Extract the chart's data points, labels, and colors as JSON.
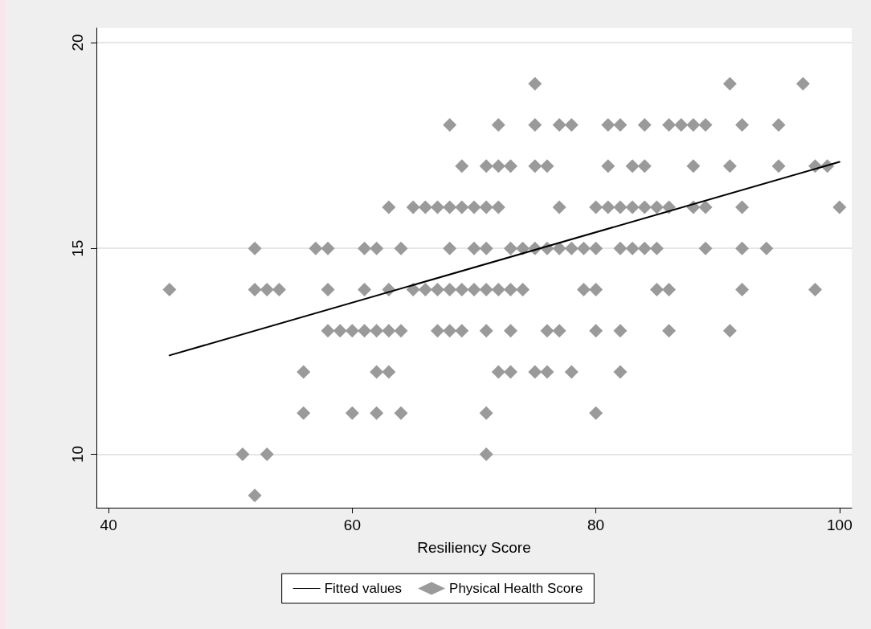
{
  "chart_data": {
    "type": "scatter",
    "xlabel": "Resiliency Score",
    "xlim": [
      39,
      101
    ],
    "xticks": [
      40,
      60,
      80,
      100
    ],
    "ylim": [
      8.7,
      20.35
    ],
    "yticks": [
      10,
      15,
      20
    ],
    "grid": "y",
    "legend": "bottom",
    "marker": "diamond",
    "series": [
      {
        "name": "Fitted values",
        "type": "line",
        "color": "#000000",
        "marker": "none",
        "line_style": "solid",
        "x": [
          45,
          100
        ],
        "values": [
          12.4,
          17.1
        ]
      },
      {
        "name": "Physical Health Score",
        "color": "#9a9a9a",
        "x": [
          75,
          91,
          97,
          68,
          72,
          75,
          77,
          78,
          81,
          82,
          84,
          86,
          87,
          88,
          89,
          92,
          95,
          69,
          71,
          72,
          73,
          75,
          76,
          81,
          83,
          84,
          88,
          91,
          95,
          98,
          99,
          63,
          65,
          66,
          67,
          68,
          69,
          70,
          71,
          72,
          77,
          80,
          81,
          82,
          83,
          84,
          85,
          86,
          88,
          89,
          92,
          100,
          52,
          57,
          58,
          61,
          62,
          64,
          68,
          70,
          71,
          73,
          74,
          75,
          76,
          77,
          78,
          79,
          80,
          82,
          83,
          84,
          85,
          89,
          92,
          94,
          45,
          52,
          53,
          54,
          58,
          61,
          63,
          65,
          66,
          67,
          68,
          69,
          70,
          71,
          72,
          73,
          74,
          79,
          80,
          85,
          86,
          92,
          98,
          58,
          59,
          60,
          61,
          62,
          63,
          64,
          67,
          68,
          69,
          71,
          73,
          76,
          77,
          80,
          82,
          86,
          91,
          56,
          62,
          63,
          72,
          73,
          75,
          76,
          78,
          82,
          56,
          60,
          62,
          64,
          71,
          80,
          51,
          53,
          71,
          52
        ],
        "values": [
          19,
          19,
          19,
          18,
          18,
          18,
          18,
          18,
          18,
          18,
          18,
          18,
          18,
          18,
          18,
          18,
          18,
          17,
          17,
          17,
          17,
          17,
          17,
          17,
          17,
          17,
          17,
          17,
          17,
          17,
          17,
          16,
          16,
          16,
          16,
          16,
          16,
          16,
          16,
          16,
          16,
          16,
          16,
          16,
          16,
          16,
          16,
          16,
          16,
          16,
          16,
          16,
          15,
          15,
          15,
          15,
          15,
          15,
          15,
          15,
          15,
          15,
          15,
          15,
          15,
          15,
          15,
          15,
          15,
          15,
          15,
          15,
          15,
          15,
          15,
          15,
          14,
          14,
          14,
          14,
          14,
          14,
          14,
          14,
          14,
          14,
          14,
          14,
          14,
          14,
          14,
          14,
          14,
          14,
          14,
          14,
          14,
          14,
          14,
          13,
          13,
          13,
          13,
          13,
          13,
          13,
          13,
          13,
          13,
          13,
          13,
          13,
          13,
          13,
          13,
          13,
          13,
          12,
          12,
          12,
          12,
          12,
          12,
          12,
          12,
          12,
          11,
          11,
          11,
          11,
          11,
          11,
          10,
          10,
          10,
          9
        ]
      }
    ]
  }
}
